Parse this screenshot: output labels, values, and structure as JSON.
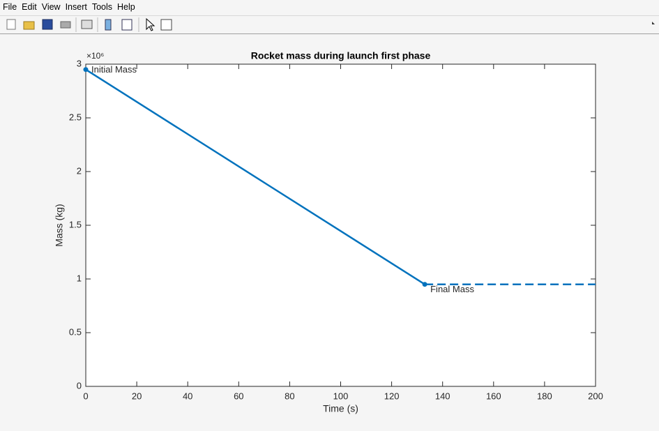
{
  "menu": [
    "File",
    "Edit",
    "View",
    "Insert",
    "Tools",
    "Help"
  ],
  "chart_data": {
    "type": "line",
    "title": "Rocket mass during launch first phase",
    "xlabel": "Time (s)",
    "ylabel": "Mass (kg)",
    "y_multiplier": "×10⁶",
    "series": [
      {
        "x": [
          0,
          133
        ],
        "values": [
          2.95,
          0.95
        ],
        "color": "#0072bd",
        "style": "solid",
        "marker": "o"
      },
      {
        "x": [
          133,
          200
        ],
        "values": [
          0.95,
          0.95
        ],
        "color": "#0072bd",
        "style": "dashed"
      }
    ],
    "annotations": [
      "Initial Mass",
      "Final Mass"
    ],
    "xlim": [
      0,
      200
    ],
    "xticks": [
      0,
      20,
      40,
      60,
      80,
      100,
      120,
      140,
      160,
      180,
      200
    ],
    "ylim": [
      0,
      3
    ],
    "yticks": [
      0,
      0.5,
      1,
      1.5,
      2,
      2.5,
      3
    ],
    "grid": false
  }
}
